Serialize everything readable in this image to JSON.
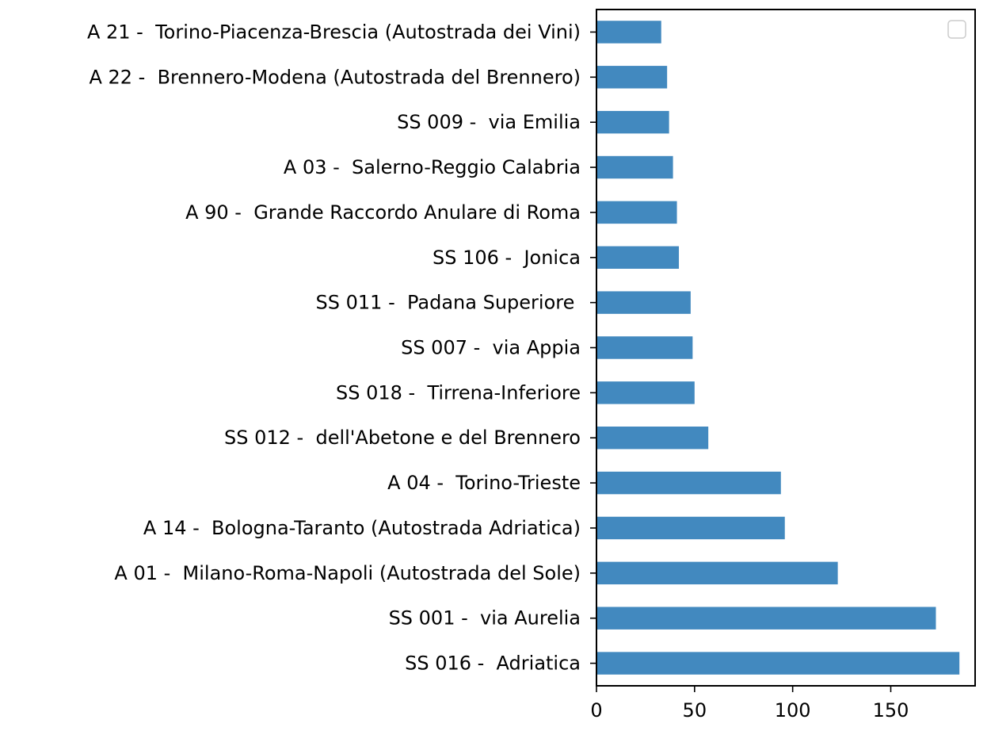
{
  "chart_data": {
    "type": "bar",
    "orientation": "horizontal",
    "categories": [
      "A 21 -  Torino-Piacenza-Brescia (Autostrada dei Vini)",
      "A 22 -  Brennero-Modena (Autostrada del Brennero)",
      "SS 009 -  via Emilia",
      "A 03 -  Salerno-Reggio Calabria",
      "A 90 -  Grande Raccordo Anulare di Roma",
      "SS 106 -  Jonica",
      "SS 011 -  Padana Superiore ",
      "SS 007 -  via Appia",
      "SS 018 -  Tirrena-Inferiore",
      "SS 012 -  dell'Abetone e del Brennero",
      "A 04 -  Torino-Trieste",
      "A 14 -  Bologna-Taranto (Autostrada Adriatica)",
      "A 01 -  Milano-Roma-Napoli (Autostrada del Sole)",
      "SS 001 -  via Aurelia",
      "SS 016 -  Adriatica"
    ],
    "values": [
      33,
      36,
      37,
      39,
      41,
      42,
      48,
      49,
      50,
      57,
      94,
      96,
      123,
      173,
      185
    ],
    "x_ticks": [
      0,
      50,
      100,
      150
    ],
    "xlim": [
      0,
      193
    ],
    "bar_color": "#4289bf",
    "grid": false,
    "legend": {
      "placement": "top-right",
      "entries": []
    },
    "title": "",
    "xlabel": "",
    "ylabel": ""
  }
}
